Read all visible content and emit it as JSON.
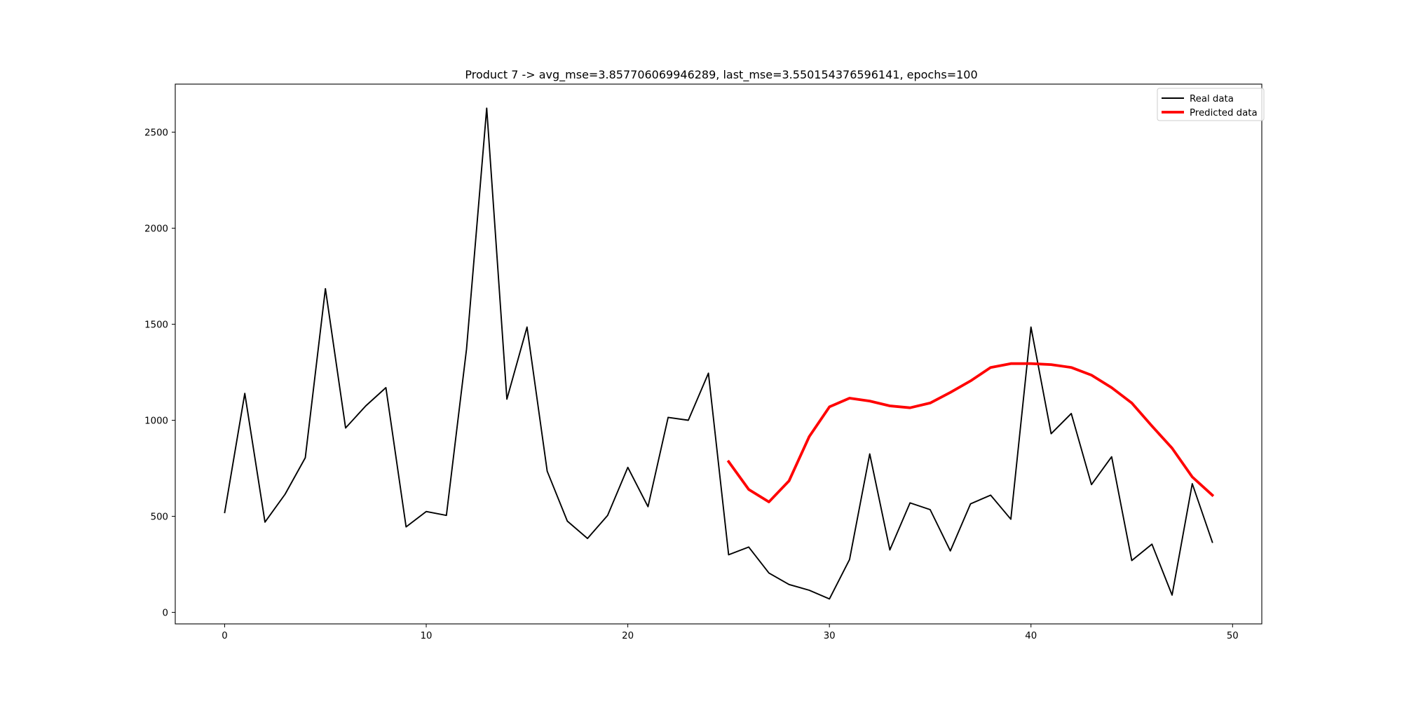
{
  "chart_data": {
    "type": "line",
    "title": "Product 7 -> avg_mse=3.857706069946289, last_mse=3.550154376596141, epochs=100",
    "xlabel": "",
    "ylabel": "",
    "xlim": [
      -2.45,
      51.45
    ],
    "ylim": [
      -60,
      2750
    ],
    "x_ticks": [
      0,
      10,
      20,
      30,
      40,
      50
    ],
    "y_ticks": [
      0,
      500,
      1000,
      1500,
      2000,
      2500
    ],
    "grid": false,
    "legend_position": "top-right",
    "series": [
      {
        "name": "Real data",
        "color": "#000000",
        "x": [
          0,
          1,
          2,
          3,
          4,
          5,
          6,
          7,
          8,
          9,
          10,
          11,
          12,
          13,
          14,
          15,
          16,
          17,
          18,
          19,
          20,
          21,
          22,
          23,
          24,
          25,
          26,
          27,
          28,
          29,
          30,
          31,
          32,
          33,
          34,
          35,
          36,
          37,
          38,
          39,
          40,
          41,
          42,
          43,
          44,
          45,
          46,
          47,
          48,
          49
        ],
        "values": [
          520,
          1140,
          470,
          615,
          805,
          1685,
          960,
          1075,
          1170,
          445,
          525,
          505,
          1370,
          2625,
          1110,
          1485,
          735,
          475,
          385,
          505,
          755,
          550,
          1015,
          1000,
          1245,
          300,
          340,
          205,
          145,
          115,
          70,
          275,
          825,
          325,
          570,
          535,
          320,
          565,
          610,
          485,
          1485,
          930,
          1035,
          665,
          810,
          270,
          355,
          90,
          670,
          365
        ]
      },
      {
        "name": "Predicted data",
        "color": "#ff0000",
        "x": [
          25,
          26,
          27,
          28,
          29,
          30,
          31,
          32,
          33,
          34,
          35,
          36,
          37,
          38,
          39,
          40,
          41,
          42,
          43,
          44,
          45,
          46,
          47,
          48,
          49
        ],
        "values": [
          785,
          640,
          575,
          685,
          915,
          1070,
          1115,
          1100,
          1075,
          1065,
          1090,
          1145,
          1205,
          1275,
          1295,
          1295,
          1290,
          1275,
          1235,
          1170,
          1090,
          970,
          855,
          705,
          610
        ]
      }
    ]
  }
}
